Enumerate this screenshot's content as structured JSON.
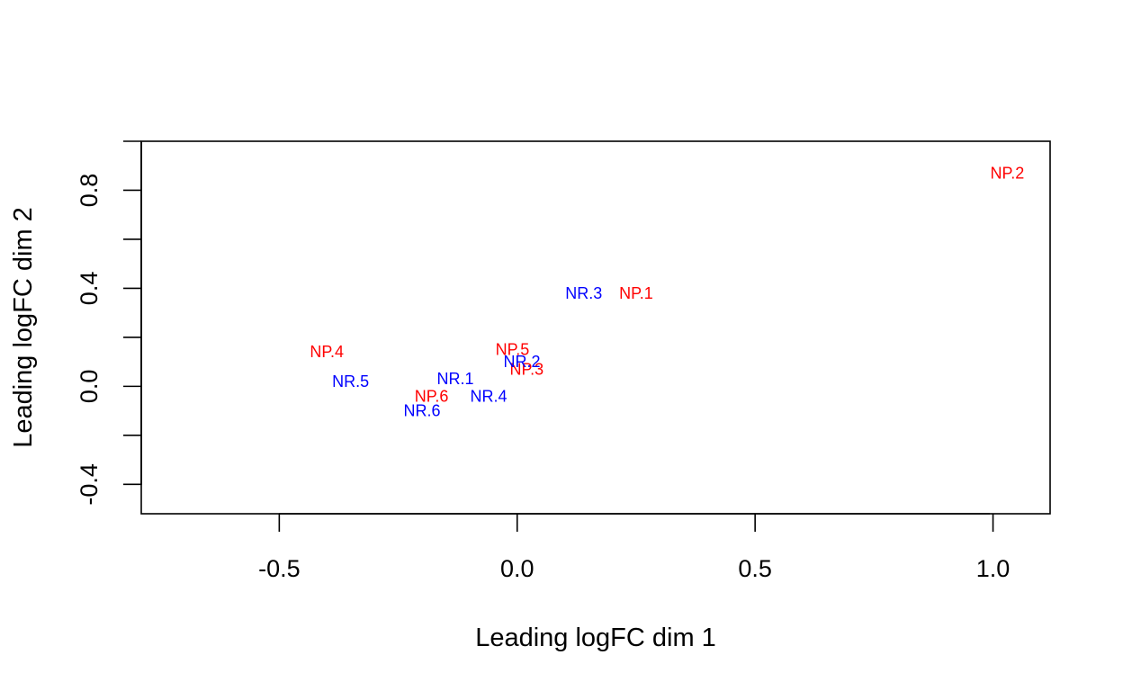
{
  "chart_data": {
    "type": "scatter",
    "title": "",
    "xlabel": "Leading logFC dim 1",
    "ylabel": "Leading logFC dim 2",
    "xlim": [
      -0.79,
      1.12
    ],
    "ylim": [
      -0.52,
      1.0
    ],
    "x_ticks": [
      -0.5,
      0.0,
      0.5,
      1.0
    ],
    "x_tick_labels": [
      "-0.5",
      "0.0",
      "0.5",
      "1.0"
    ],
    "y_ticks": [
      -0.4,
      -0.2,
      0.0,
      0.2,
      0.4,
      0.6,
      0.8,
      1.0
    ],
    "y_tick_labels": [
      "-0.4",
      "",
      "0.0",
      "",
      "0.4",
      "",
      "0.8",
      ""
    ],
    "grid": false,
    "legend": "none",
    "colors": {
      "NP": "#ff0000",
      "NR": "#0000ff"
    },
    "points": [
      {
        "label": "NP.1",
        "group": "NP",
        "x": 0.25,
        "y": 0.38
      },
      {
        "label": "NP.2",
        "group": "NP",
        "x": 1.03,
        "y": 0.87
      },
      {
        "label": "NP.3",
        "group": "NP",
        "x": 0.02,
        "y": 0.07
      },
      {
        "label": "NP.4",
        "group": "NP",
        "x": -0.4,
        "y": 0.14
      },
      {
        "label": "NP.5",
        "group": "NP",
        "x": -0.01,
        "y": 0.15
      },
      {
        "label": "NP.6",
        "group": "NP",
        "x": -0.18,
        "y": -0.04
      },
      {
        "label": "NR.1",
        "group": "NR",
        "x": -0.13,
        "y": 0.03
      },
      {
        "label": "NR.2",
        "group": "NR",
        "x": 0.01,
        "y": 0.1
      },
      {
        "label": "NR.3",
        "group": "NR",
        "x": 0.14,
        "y": 0.38
      },
      {
        "label": "NR.4",
        "group": "NR",
        "x": -0.06,
        "y": -0.04
      },
      {
        "label": "NR.5",
        "group": "NR",
        "x": -0.35,
        "y": 0.02
      },
      {
        "label": "NR.6",
        "group": "NR",
        "x": -0.2,
        "y": -0.1
      }
    ]
  }
}
